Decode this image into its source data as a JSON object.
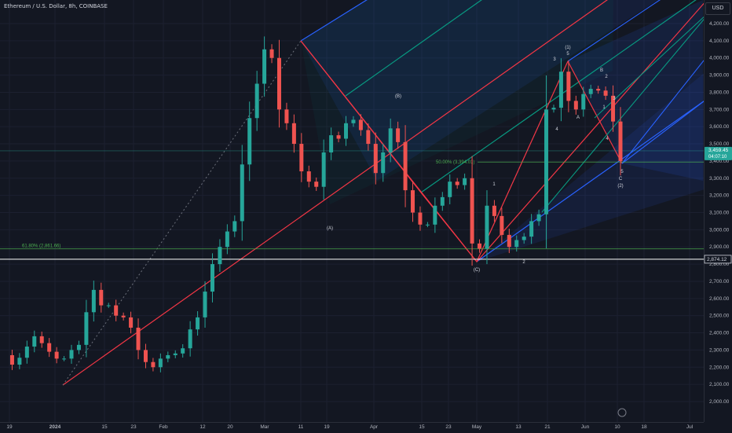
{
  "header": {
    "symbol_title": "Ethereum / U.S. Dollar, 8h, COINBASE"
  },
  "price_axis": {
    "currency_button": "USD",
    "ticks": [
      "4,200.00",
      "4,100.00",
      "4,000.00",
      "3,900.00",
      "3,800.00",
      "3,700.00",
      "3,600.00",
      "3,500.00",
      "3,400.00",
      "3,300.00",
      "3,200.00",
      "3,100.00",
      "3,000.00",
      "2,900.00",
      "2,800.00",
      "2,700.00",
      "2,600.00",
      "2,500.00",
      "2,400.00",
      "2,300.00",
      "2,200.00",
      "2,100.00",
      "2,000.00"
    ],
    "current_price_label": "3,459.45",
    "countdown_label": "04:07:10",
    "horizontal_line_label": "2,874.12"
  },
  "time_axis": {
    "labels": [
      "19",
      "2024",
      "15",
      "23",
      "Feb",
      "12",
      "20",
      "Mar",
      "11",
      "19",
      "Apr",
      "15",
      "23",
      "May",
      "13",
      "21",
      "Jun",
      "10",
      "18",
      "Jul"
    ]
  },
  "fib_labels": {
    "f618": "61.80% (2,861.66)",
    "f50": "50.00% (3,394.01)"
  },
  "wave_labels": [
    "(A)",
    "(B)",
    "(C)",
    "1",
    "2",
    "3",
    "4",
    "(1)",
    "5",
    "A",
    "B",
    "C",
    "1",
    "2",
    "3",
    "4",
    "5",
    "(2)"
  ],
  "chart_data": {
    "type": "line",
    "title": "Ethereum / U.S. Dollar, 8h, COINBASE",
    "ylim": [
      1950,
      4260
    ],
    "y_ticks": [
      4200,
      4100,
      4000,
      3900,
      3800,
      3700,
      3600,
      3500,
      3400,
      3300,
      3200,
      3100,
      3000,
      2900,
      2800,
      2700,
      2600,
      2500,
      2400,
      2300,
      2200,
      2100,
      2000
    ],
    "series": [
      {
        "values": [
          2270,
          2215,
          2255,
          2320,
          2380,
          2340,
          2290,
          2250,
          2250,
          2300,
          2330,
          2520,
          2650,
          2560,
          2560,
          2500,
          2490,
          2430,
          2300,
          2230,
          2200,
          2250,
          2270,
          2280,
          2310,
          2420,
          2490,
          2640,
          2800,
          2900,
          2990,
          3050,
          3380,
          3650,
          3850,
          4050,
          4000,
          3700,
          3620,
          3500,
          3340,
          3280,
          3250,
          3450,
          3550,
          3530,
          3620,
          3640,
          3580,
          3500,
          3330,
          3450,
          3590,
          3510,
          3230,
          3100,
          3030,
          3030,
          3140,
          3190,
          3280,
          3260,
          3300,
          2920,
          2890,
          3140,
          3080,
          2970,
          2900,
          2940,
          2960,
          3050,
          3090,
          3700,
          3710,
          3920,
          3750,
          3700,
          3790,
          3820,
          3810,
          3780,
          3630,
          3400
        ]
      }
    ],
    "current_price": 3459.45,
    "horizontal_level": 2874.12,
    "fib_levels": [
      {
        "label": "61.80% (2,861.66)",
        "value": 2861.66
      },
      {
        "label": "50.00% (3,394.01)",
        "value": 3394.01
      }
    ]
  },
  "colors": {
    "background": "#131722",
    "up": "#26a69a",
    "down": "#ef5350",
    "pitchfork_red": "#f23645",
    "pitchfork_blue": "#2962ff",
    "pitchfork_green": "#089981",
    "pitchfork_teal": "#00bcd4",
    "fib_green": "#4caf50",
    "horizontal_line": "#ffffff"
  }
}
